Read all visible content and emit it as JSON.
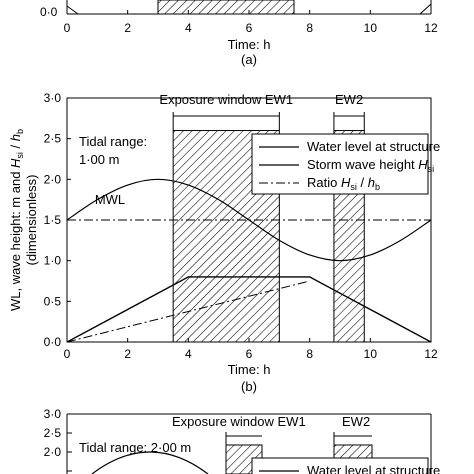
{
  "chart_data": [
    {
      "type": "line",
      "panel": "(a)",
      "xlabel": "Time: h",
      "x_ticks": [
        "0",
        "2",
        "4",
        "6",
        "8",
        "10",
        "12"
      ],
      "y_ticks_visible": [
        "0·0"
      ],
      "xlim": [
        0,
        12
      ]
    },
    {
      "type": "line",
      "panel": "(b)",
      "xlabel": "Time: h",
      "ylabel": "WL, wave height: m and H_si / h_b (dimensionless)",
      "ylabel_parts": {
        "main": "WL, wave height: m and ",
        "h": "H",
        "h_sub": "si",
        "sep": " / ",
        "b": "h",
        "b_sub": "b",
        "line2": "(dimensionless)"
      },
      "xlim": [
        0,
        12
      ],
      "ylim": [
        0,
        3
      ],
      "x_ticks": [
        "0",
        "2",
        "4",
        "6",
        "8",
        "10",
        "12"
      ],
      "y_ticks": [
        "0·0",
        "0·5",
        "1·0",
        "1·5",
        "2·0",
        "2·5",
        "3·0"
      ],
      "tidal_range_label": "Tidal range:",
      "tidal_range_value": "1·00 m",
      "mwl_label": "MWL",
      "exposure_windows": [
        {
          "label": "Exposure window EW1",
          "x_start": 3.5,
          "x_end": 7.0,
          "height": 2.6
        },
        {
          "label": "EW2",
          "x_start": 8.8,
          "x_end": 9.8,
          "height": 2.6
        }
      ],
      "legend": {
        "position": "upper-right",
        "entries": [
          {
            "label": "Water level at structure",
            "style": "solid-thin"
          },
          {
            "label": "Storm wave height ",
            "sym": "H",
            "sub": "si",
            "style": "solid"
          },
          {
            "label": "Ratio ",
            "sym": "H",
            "sub": "si",
            "sep": " / ",
            "sym2": "h",
            "sub2": "b",
            "style": "dash-dot"
          }
        ]
      },
      "series": [
        {
          "name": "Water level at structure",
          "x": [
            0,
            4,
            8,
            10,
            12
          ],
          "y": [
            0.0,
            0.8,
            0.8,
            0.4,
            0.0
          ]
        },
        {
          "name": "Storm wave height Hsi",
          "x": [
            0,
            1,
            2,
            3,
            4,
            5,
            6,
            7,
            8,
            9,
            10,
            11,
            12
          ],
          "y": [
            1.5,
            1.75,
            1.93,
            2.0,
            1.93,
            1.75,
            1.5,
            1.25,
            1.07,
            1.0,
            1.07,
            1.25,
            1.5
          ]
        },
        {
          "name": "Ratio Hsi / hb",
          "x": [
            0,
            8
          ],
          "y": [
            0.0,
            0.75
          ]
        },
        {
          "name": "MWL",
          "x": [
            0,
            12
          ],
          "y": [
            1.5,
            1.5
          ]
        }
      ]
    },
    {
      "type": "line",
      "panel": "(c)",
      "ylim": [
        0,
        3
      ],
      "y_ticks_visible": [
        "3·0",
        "2·5",
        "2·0"
      ],
      "tidal_range_label": "Tidal range: 2·00 m",
      "exposure_windows": [
        {
          "label": "Exposure window EW1"
        },
        {
          "label": "EW2"
        }
      ],
      "legend_partial": "Water level at structure"
    }
  ],
  "colors": {
    "ink": "#000000",
    "hatch": "#000000",
    "background": "#ffffff"
  }
}
